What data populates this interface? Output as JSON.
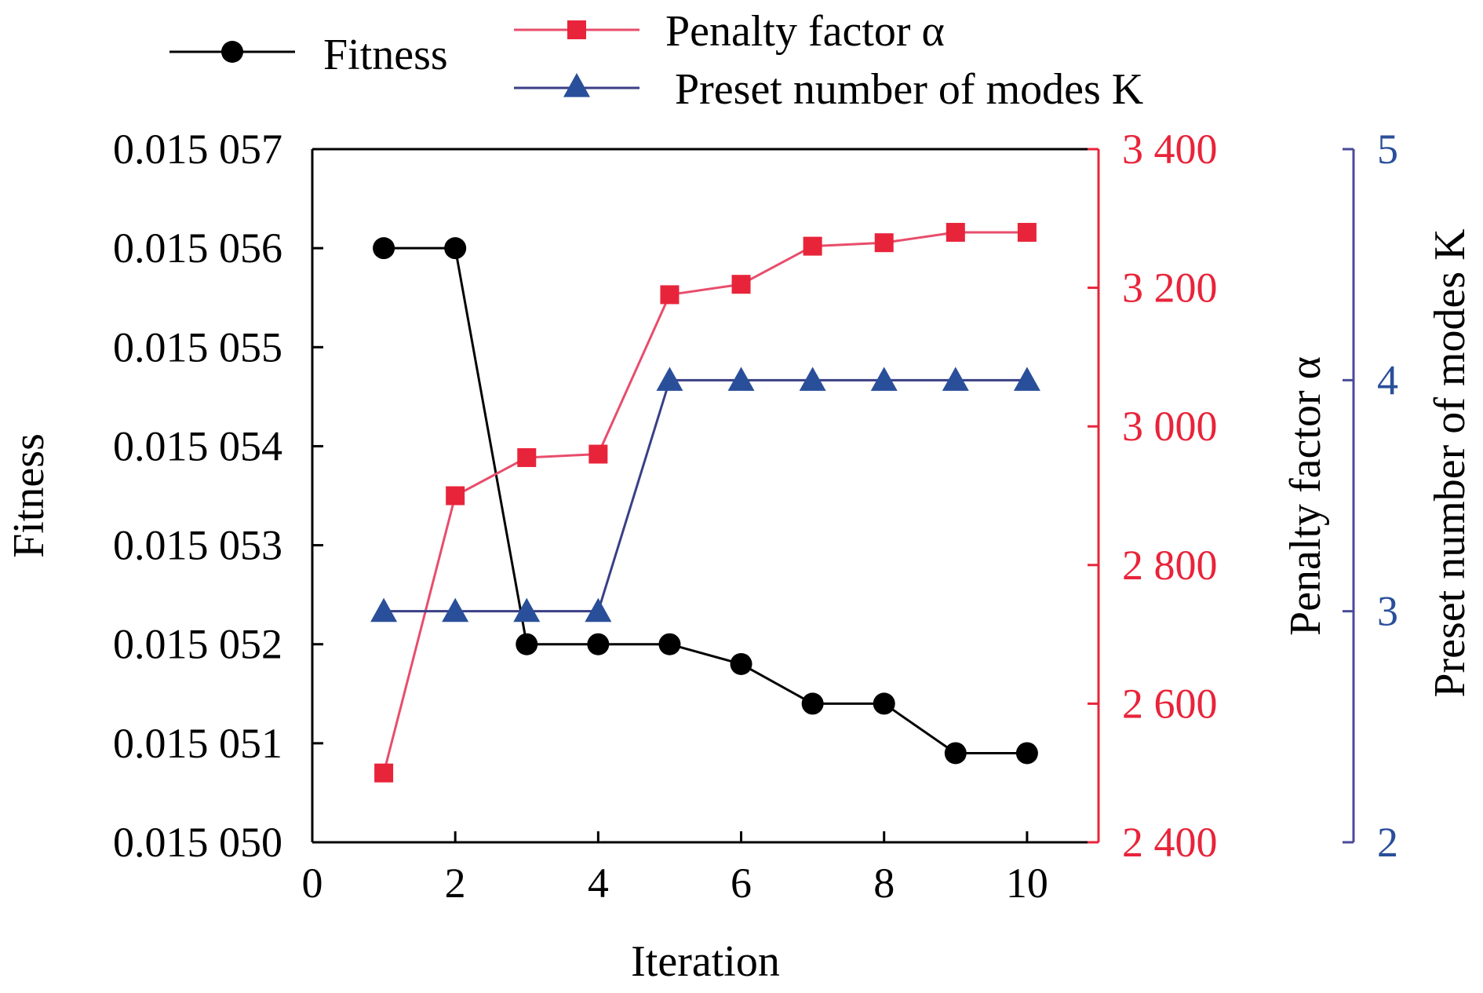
{
  "chart_data": {
    "type": "line",
    "xlabel": "Iteration",
    "ylabel": "Fitness",
    "y2label": "Penalty factor α",
    "y3label": "Preset number of modes K",
    "xlim": [
      0,
      11
    ],
    "ylim": [
      0.01505,
      0.015057
    ],
    "y2lim": [
      2400,
      3400
    ],
    "y3lim": [
      2,
      5
    ],
    "x_ticks": [
      "0",
      "2",
      "4",
      "6",
      "8",
      "10"
    ],
    "y_ticks": [
      "0.015 050",
      "0.015 051",
      "0.015 052",
      "0.015 053",
      "0.015 054",
      "0.015 055",
      "0.015 056",
      "0.015 057"
    ],
    "y2_ticks": [
      "2 400",
      "2 600",
      "2 800",
      "3 000",
      "3 200",
      "3 400"
    ],
    "y3_ticks": [
      "2",
      "3",
      "4",
      "5"
    ],
    "x": [
      1,
      2,
      3,
      4,
      5,
      6,
      7,
      8,
      9,
      10
    ],
    "series": [
      {
        "name": "Fitness",
        "axis": "y",
        "marker": "circle",
        "color": "#000000",
        "values": [
          0.015056,
          0.015056,
          0.015052,
          0.015052,
          0.015052,
          0.0150518,
          0.0150514,
          0.0150514,
          0.0150509,
          0.0150509
        ]
      },
      {
        "name": "Penalty factor α",
        "axis": "y2",
        "marker": "square",
        "color": "#e8243a",
        "values": [
          2500,
          2900,
          2955,
          2960,
          3190,
          3205,
          3260,
          3265,
          3280,
          3280
        ]
      },
      {
        "name": "Preset number of modes K",
        "axis": "y3",
        "marker": "triangle",
        "color": "#2a4f9a",
        "values": [
          3,
          3,
          3,
          3,
          4,
          4,
          4,
          4,
          4,
          4
        ]
      }
    ],
    "colors": {
      "fitness": "#000000",
      "penalty": "#e8243a",
      "penalty_line": "#e84d6b",
      "modes": "#2a4f9a",
      "modes_line": "#3a3f85",
      "modes_axis": "#4a4a9a"
    },
    "legend_position": "top"
  }
}
